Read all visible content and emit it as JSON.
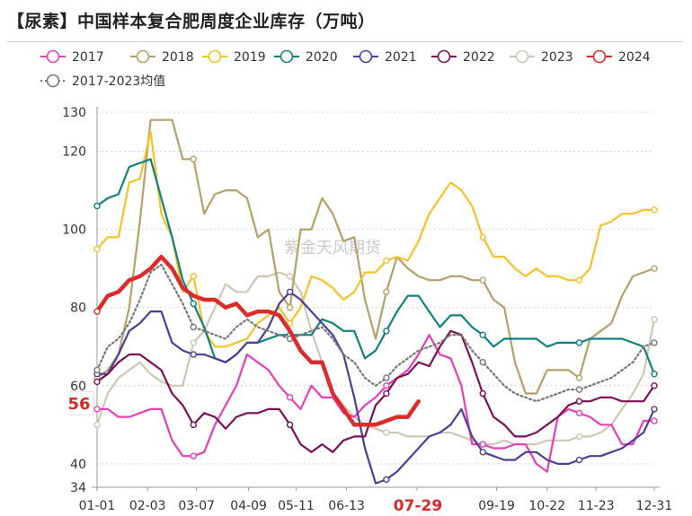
{
  "title": "【尿素】中国样本复合肥周度企业库存（万吨）",
  "watermark": "紫金天风期货",
  "chart_data": {
    "type": "line",
    "title": "【尿素】中国样本复合肥周度企业库存（万吨）",
    "unit": "万吨",
    "y_min": 34,
    "y_max": 130,
    "y_ticks": [
      34,
      40,
      60,
      80,
      100,
      120,
      130
    ],
    "x_ticks": [
      "01-01",
      "02-03",
      "03-07",
      "04-09",
      "05-11",
      "06-13",
      "07-29",
      "09-19",
      "10-22",
      "11-23",
      "12-31"
    ],
    "x_ticks_doy": [
      1,
      34,
      66,
      100,
      131,
      164,
      210,
      262,
      295,
      327,
      365
    ],
    "highlight_x_label": "07-29",
    "highlight_y_label": "56",
    "grid": "y-dotted",
    "legend_position": "top",
    "series": [
      {
        "name": "2017",
        "color": "#e83fb8",
        "width": 2.2,
        "style": "solid",
        "x": [
          1,
          8,
          15,
          22,
          29,
          36,
          43,
          50,
          57,
          64,
          71,
          78,
          85,
          92,
          99,
          106,
          113,
          120,
          127,
          134,
          141,
          148,
          155,
          162,
          169,
          176,
          183,
          190,
          197,
          204,
          211,
          218,
          225,
          232,
          239,
          246,
          253,
          260,
          267,
          274,
          281,
          288,
          295,
          302,
          309,
          316,
          323,
          330,
          337,
          344,
          351,
          358,
          365
        ],
        "y": [
          54,
          54,
          52,
          52,
          53,
          54,
          54,
          46,
          42,
          42,
          43,
          50,
          55,
          60,
          68,
          66,
          64,
          60,
          57,
          54,
          60,
          57,
          57,
          53,
          52,
          55,
          57,
          60,
          62,
          64,
          68,
          73,
          68,
          67,
          60,
          45,
          45,
          44,
          44,
          45,
          45,
          40,
          38,
          52,
          54,
          53,
          52,
          50,
          50,
          45,
          45,
          51,
          51
        ]
      },
      {
        "name": "2018",
        "color": "#b5a06a",
        "width": 2.2,
        "style": "solid",
        "x": [
          1,
          8,
          15,
          22,
          29,
          36,
          43,
          50,
          57,
          64,
          71,
          78,
          85,
          92,
          99,
          106,
          113,
          120,
          127,
          134,
          141,
          148,
          155,
          162,
          169,
          176,
          183,
          190,
          197,
          204,
          211,
          218,
          225,
          232,
          239,
          246,
          253,
          260,
          267,
          274,
          281,
          288,
          295,
          302,
          309,
          316,
          323,
          330,
          337,
          344,
          351,
          358,
          365
        ],
        "y": [
          62,
          64,
          68,
          80,
          102,
          128,
          128,
          128,
          118,
          118,
          104,
          109,
          110,
          110,
          108,
          98,
          100,
          84,
          80,
          100,
          100,
          108,
          104,
          97,
          98,
          82,
          72,
          84,
          93,
          90,
          88,
          87,
          87,
          88,
          88,
          87,
          87,
          82,
          80,
          66,
          58,
          58,
          64,
          64,
          64,
          62,
          72,
          74,
          76,
          83,
          88,
          89,
          90
        ]
      },
      {
        "name": "2019",
        "color": "#f6c228",
        "width": 2.2,
        "style": "solid",
        "x": [
          1,
          8,
          15,
          22,
          29,
          36,
          43,
          50,
          57,
          64,
          71,
          78,
          85,
          92,
          99,
          106,
          113,
          120,
          127,
          134,
          141,
          148,
          155,
          162,
          169,
          176,
          183,
          190,
          197,
          204,
          211,
          218,
          225,
          232,
          239,
          246,
          253,
          260,
          267,
          274,
          281,
          288,
          295,
          302,
          309,
          316,
          323,
          330,
          337,
          344,
          351,
          358,
          365
        ],
        "y": [
          95,
          98,
          98,
          112,
          113,
          125,
          104,
          98,
          84,
          88,
          74,
          70,
          70,
          71,
          72,
          76,
          78,
          80,
          76,
          80,
          88,
          87,
          85,
          82,
          84,
          89,
          89,
          92,
          93,
          92,
          97,
          104,
          108,
          112,
          110,
          106,
          98,
          93,
          93,
          90,
          88,
          90,
          88,
          88,
          87,
          87,
          90,
          101,
          102,
          104,
          104,
          105,
          105
        ]
      },
      {
        "name": "2020",
        "color": "#118080",
        "width": 2.2,
        "style": "solid",
        "x": [
          1,
          8,
          15,
          22,
          29,
          36,
          43,
          50,
          57,
          64,
          71,
          78,
          85,
          92,
          99,
          106,
          113,
          120,
          127,
          134,
          141,
          148,
          155,
          162,
          169,
          176,
          183,
          190,
          197,
          204,
          211,
          218,
          225,
          232,
          239,
          246,
          253,
          260,
          267,
          274,
          281,
          288,
          295,
          302,
          309,
          316,
          323,
          330,
          337,
          344,
          351,
          358,
          365
        ],
        "y": [
          106,
          108,
          109,
          116,
          117,
          118,
          108,
          98,
          87,
          81,
          75,
          67,
          66,
          68,
          71,
          71,
          72,
          73,
          73,
          73,
          73,
          77,
          76,
          74,
          74,
          67,
          69,
          74,
          79,
          83,
          83,
          79,
          75,
          78,
          78,
          75,
          73,
          70,
          72,
          72,
          72,
          72,
          70,
          71,
          71,
          71,
          72,
          72,
          72,
          72,
          71,
          70,
          63
        ]
      },
      {
        "name": "2021",
        "color": "#4e3e96",
        "width": 2.2,
        "style": "solid",
        "x": [
          1,
          8,
          15,
          22,
          29,
          36,
          43,
          50,
          57,
          64,
          71,
          78,
          85,
          92,
          99,
          106,
          113,
          120,
          127,
          134,
          141,
          148,
          155,
          162,
          169,
          176,
          183,
          190,
          197,
          204,
          211,
          218,
          225,
          232,
          239,
          246,
          253,
          260,
          267,
          274,
          281,
          288,
          295,
          302,
          309,
          316,
          323,
          330,
          337,
          344,
          351,
          358,
          365
        ],
        "y": [
          63,
          63,
          68,
          74,
          76,
          79,
          79,
          71,
          69,
          68,
          68,
          67,
          66,
          68,
          71,
          71,
          75,
          81,
          84,
          82,
          79,
          76,
          73,
          68,
          57,
          44,
          35,
          36,
          38,
          41,
          44,
          47,
          48,
          50,
          54,
          47,
          43,
          42,
          41,
          41,
          43,
          43,
          41,
          40,
          40,
          41,
          42,
          42,
          43,
          44,
          46,
          48,
          54
        ]
      },
      {
        "name": "2022",
        "color": "#7d1158",
        "width": 2.2,
        "style": "solid",
        "x": [
          1,
          8,
          15,
          22,
          29,
          36,
          43,
          50,
          57,
          64,
          71,
          78,
          85,
          92,
          99,
          106,
          113,
          120,
          127,
          134,
          141,
          148,
          155,
          162,
          169,
          176,
          183,
          190,
          197,
          204,
          211,
          218,
          225,
          232,
          239,
          246,
          253,
          260,
          267,
          274,
          281,
          288,
          295,
          302,
          309,
          316,
          323,
          330,
          337,
          344,
          351,
          358,
          365
        ],
        "y": [
          61,
          63,
          66,
          68,
          68,
          66,
          64,
          58,
          55,
          50,
          53,
          52,
          49,
          52,
          53,
          53,
          54,
          54,
          50,
          45,
          43,
          45,
          43,
          46,
          47,
          47,
          55,
          58,
          62,
          63,
          66,
          65,
          70,
          74,
          73,
          66,
          58,
          52,
          50,
          47,
          47,
          48,
          50,
          52,
          55,
          56,
          56,
          57,
          57,
          56,
          56,
          56,
          60
        ]
      },
      {
        "name": "2023",
        "color": "#cfc7b4",
        "width": 2.2,
        "style": "solid",
        "x": [
          1,
          8,
          15,
          22,
          29,
          36,
          43,
          50,
          57,
          64,
          71,
          78,
          85,
          92,
          99,
          106,
          113,
          120,
          127,
          134,
          141,
          148,
          155,
          162,
          169,
          176,
          183,
          190,
          197,
          204,
          211,
          218,
          225,
          232,
          239,
          246,
          253,
          260,
          267,
          274,
          281,
          288,
          295,
          302,
          309,
          316,
          323,
          330,
          337,
          344,
          351,
          358,
          365
        ],
        "y": [
          50,
          58,
          62,
          64,
          66,
          63,
          61,
          60,
          60,
          71,
          74,
          80,
          86,
          84,
          84,
          88,
          88,
          89,
          88,
          84,
          74,
          66,
          58,
          55,
          52,
          50,
          49,
          48,
          48,
          47,
          47,
          47,
          48,
          48,
          47,
          46,
          45,
          45,
          46,
          45,
          45,
          45,
          46,
          46,
          46,
          47,
          47,
          48,
          50,
          54,
          58,
          63,
          77
        ]
      },
      {
        "name": "2024",
        "color": "#dd2a2a",
        "width": 4.5,
        "style": "solid",
        "x": [
          1,
          8,
          15,
          22,
          29,
          36,
          43,
          50,
          57,
          64,
          71,
          78,
          85,
          92,
          99,
          106,
          113,
          120,
          127,
          134,
          141,
          148,
          155,
          162,
          169,
          176,
          183,
          190,
          197,
          204,
          211
        ],
        "y": [
          79,
          83,
          84,
          87,
          88,
          90,
          93,
          90,
          85,
          83,
          82,
          82,
          80,
          81,
          78,
          79,
          79,
          78,
          74,
          69,
          66,
          66,
          58,
          54,
          50,
          50,
          50,
          51,
          52,
          52,
          56
        ]
      },
      {
        "name": "2017-2023均值",
        "color": "#777777",
        "width": 2.2,
        "style": "dotted",
        "x": [
          1,
          8,
          15,
          22,
          29,
          36,
          43,
          50,
          57,
          64,
          71,
          78,
          85,
          92,
          99,
          106,
          113,
          120,
          127,
          134,
          141,
          148,
          155,
          162,
          169,
          176,
          183,
          190,
          197,
          204,
          211,
          218,
          225,
          232,
          239,
          246,
          253,
          260,
          267,
          274,
          281,
          288,
          295,
          302,
          309,
          316,
          323,
          330,
          337,
          344,
          351,
          358,
          365
        ],
        "y": [
          64,
          70,
          72,
          76,
          82,
          89,
          91,
          86,
          81,
          75,
          74,
          73,
          72,
          75,
          77,
          75,
          74,
          73,
          72,
          73,
          74,
          75,
          72,
          68,
          66,
          62,
          60,
          62,
          65,
          67,
          69,
          70,
          71,
          73,
          73,
          69,
          66,
          63,
          60,
          58,
          57,
          56,
          57,
          58,
          59,
          59,
          60,
          61,
          62,
          64,
          66,
          70,
          71
        ]
      }
    ]
  }
}
